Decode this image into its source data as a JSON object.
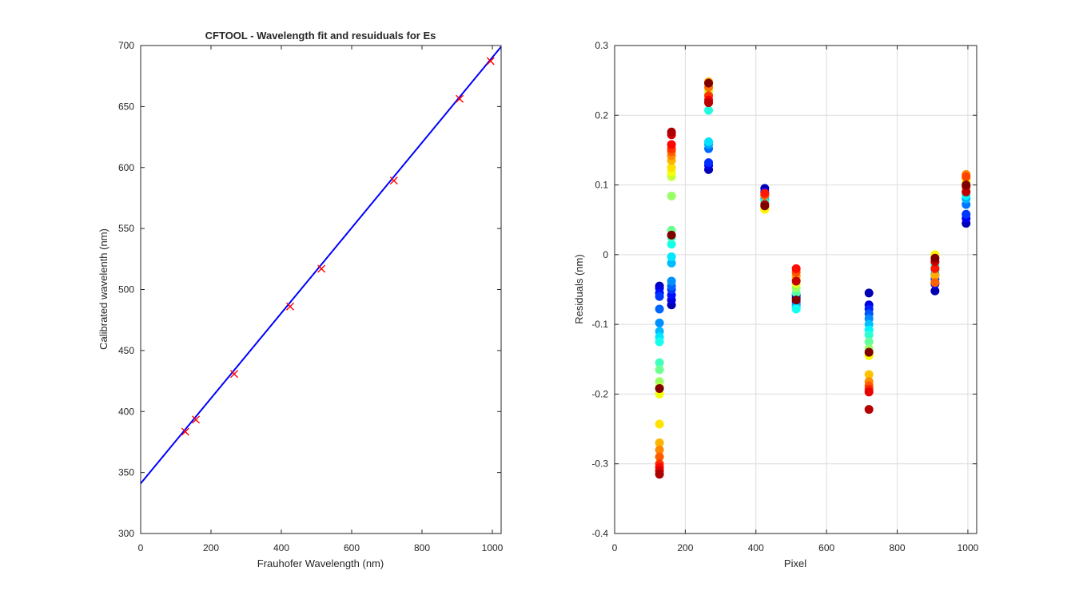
{
  "chart_data": [
    {
      "type": "line",
      "title": "CFTOOL - Wavelength fit and resuiduals for Es",
      "xlabel": "Frauhofer Wavelength (nm)",
      "ylabel": "Calibrated wavelenth (nm)",
      "xlim": [
        0,
        1025
      ],
      "ylim": [
        300,
        700
      ],
      "xticks": [
        "0",
        "200",
        "400",
        "600",
        "800",
        "1000"
      ],
      "yticks": [
        "300",
        "350",
        "400",
        "450",
        "500",
        "550",
        "600",
        "650",
        "700"
      ],
      "grid": false,
      "colors": {
        "fit_line": "#0000ff",
        "markers": "#ff0000"
      },
      "fit_line": {
        "x": [
          0,
          1025
        ],
        "y": [
          341,
          699
        ]
      },
      "markers": {
        "x": [
          127,
          157,
          266,
          425,
          514,
          720,
          907,
          995
        ],
        "y": [
          383.5,
          393.4,
          430.8,
          486.1,
          517.0,
          589.3,
          656.3,
          687.2
        ]
      }
    },
    {
      "type": "scatter",
      "title": "",
      "xlabel": "Pixel",
      "ylabel": "Residuals  (nm)",
      "xlim": [
        0,
        1025
      ],
      "ylim": [
        -0.4,
        0.3
      ],
      "xticks": [
        "0",
        "200",
        "400",
        "600",
        "800",
        "1000"
      ],
      "yticks": [
        "-0.4",
        "-0.3",
        "-0.2",
        "-0.1",
        "0",
        "0.1",
        "0.2",
        "0.3"
      ],
      "grid": true,
      "colormap": "jet",
      "series": [
        {
          "x": 127,
          "residuals": [
            -0.045,
            -0.048,
            -0.055,
            -0.06,
            -0.078,
            -0.098,
            -0.11,
            -0.118,
            -0.125,
            -0.155,
            -0.165,
            -0.182,
            -0.19,
            -0.2,
            -0.243,
            -0.27,
            -0.28,
            -0.29,
            -0.3,
            -0.305,
            -0.31,
            -0.315,
            -0.192
          ]
        },
        {
          "x": 161,
          "residuals": [
            -0.072,
            -0.065,
            -0.058,
            -0.05,
            -0.045,
            -0.038,
            -0.012,
            -0.003,
            0.015,
            0.025,
            0.035,
            0.084,
            0.112,
            0.118,
            0.125,
            0.135,
            0.142,
            0.148,
            0.152,
            0.158,
            0.172,
            0.176,
            0.028
          ]
        },
        {
          "x": 266,
          "residuals": [
            0.122,
            0.128,
            0.132,
            0.152,
            0.158,
            0.162,
            0.207,
            0.22,
            0.23,
            0.235,
            0.245,
            0.248,
            0.24,
            0.228,
            0.222,
            0.218,
            0.246
          ]
        },
        {
          "x": 425,
          "residuals": [
            0.095,
            0.09,
            0.085,
            0.08,
            0.078,
            0.075,
            0.072,
            0.068,
            0.065,
            0.07,
            0.085,
            0.088,
            0.072,
            0.07
          ]
        },
        {
          "x": 514,
          "residuals": [
            -0.058,
            -0.062,
            -0.068,
            -0.072,
            -0.075,
            -0.078,
            -0.055,
            -0.048,
            -0.042,
            -0.035,
            -0.03,
            -0.025,
            -0.02,
            -0.038,
            -0.065
          ]
        },
        {
          "x": 720,
          "residuals": [
            -0.055,
            -0.072,
            -0.078,
            -0.085,
            -0.092,
            -0.1,
            -0.108,
            -0.115,
            -0.125,
            -0.135,
            -0.142,
            -0.145,
            -0.172,
            -0.182,
            -0.188,
            -0.193,
            -0.197,
            -0.222,
            -0.14
          ]
        },
        {
          "x": 907,
          "residuals": [
            -0.052,
            -0.042,
            -0.035,
            -0.028,
            -0.022,
            -0.015,
            -0.01,
            -0.005,
            0.0,
            -0.03,
            -0.04,
            -0.02,
            -0.01,
            -0.005
          ]
        },
        {
          "x": 995,
          "residuals": [
            0.045,
            0.052,
            0.058,
            0.072,
            0.08,
            0.085,
            0.09,
            0.095,
            0.1,
            0.105,
            0.11,
            0.115,
            0.112,
            0.098,
            0.09,
            0.1
          ]
        }
      ]
    }
  ]
}
